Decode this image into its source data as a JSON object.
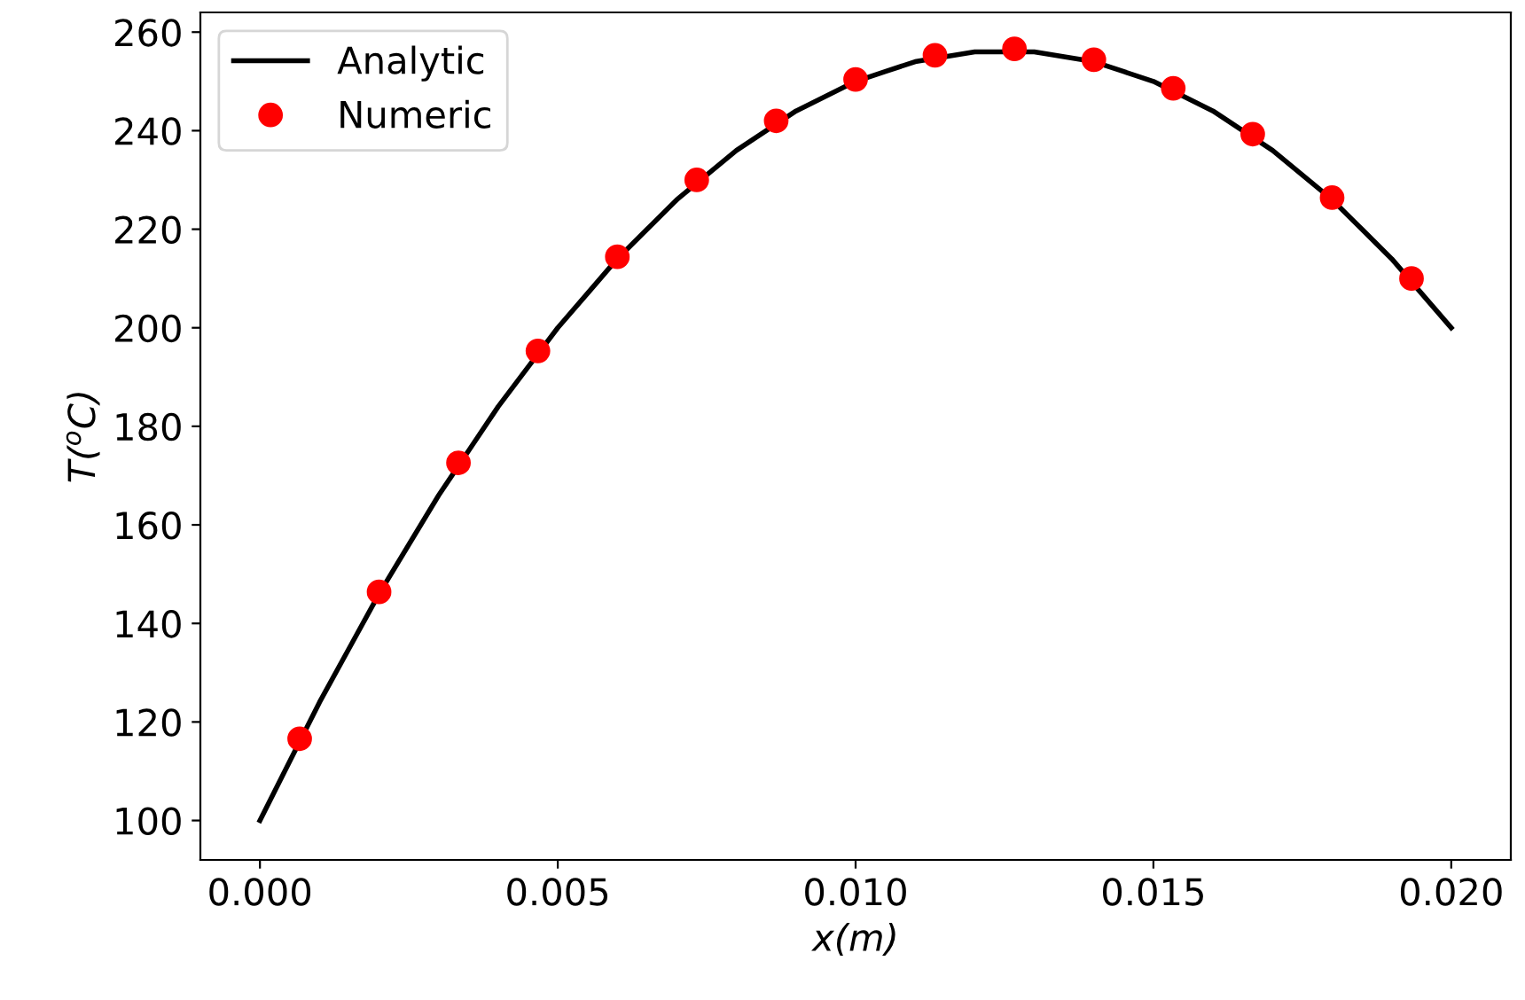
{
  "chart_data": {
    "type": "line",
    "xlabel": "x(m)",
    "ylabel": "T($^{o}$C)",
    "xlim": [
      -0.001,
      0.021
    ],
    "ylim": [
      92,
      264
    ],
    "xticks": [
      {
        "value": 0,
        "label": "0.000"
      },
      {
        "value": 0.005,
        "label": "0.005"
      },
      {
        "value": 0.01,
        "label": "0.010"
      },
      {
        "value": 0.015,
        "label": "0.015"
      },
      {
        "value": 0.02,
        "label": "0.020"
      }
    ],
    "yticks": [
      100,
      120,
      140,
      160,
      180,
      200,
      220,
      240,
      260
    ],
    "legend": "top left",
    "grid": false,
    "series": [
      {
        "name": "Analytic",
        "color": "#000000",
        "marker": "none",
        "line_style": "solid",
        "x": [
          0,
          0.0005,
          0.001,
          0.0015,
          0.002,
          0.0025,
          0.003,
          0.0035,
          0.004,
          0.0045,
          0.005,
          0.0055,
          0.006,
          0.0065,
          0.007,
          0.0075,
          0.008,
          0.0085,
          0.009,
          0.0095,
          0.01,
          0.0105,
          0.011,
          0.0115,
          0.012,
          0.0125,
          0.013,
          0.0135,
          0.014,
          0.0145,
          0.015,
          0.0155,
          0.016,
          0.0165,
          0.017,
          0.0175,
          0.018,
          0.0185,
          0.019,
          0.0195,
          0.02
        ],
        "values": [
          100,
          112,
          124,
          135,
          146,
          156,
          166,
          175,
          184,
          192,
          200,
          207,
          214,
          220,
          226,
          231,
          236,
          240,
          244,
          247,
          250,
          252,
          254,
          255,
          256,
          256,
          256,
          255,
          254,
          252,
          250,
          247,
          244,
          240,
          236,
          231,
          226,
          220,
          214,
          207,
          200
        ]
      },
      {
        "name": "Numeric",
        "type": "scatter",
        "color": "#ff0000",
        "marker": "circle",
        "x": [
          0.000667,
          0.002,
          0.003333,
          0.004667,
          0.006,
          0.007333,
          0.008667,
          0.01,
          0.011333,
          0.012667,
          0.014,
          0.015333,
          0.016667,
          0.018,
          0.019333
        ],
        "values": [
          116.6,
          146.4,
          172.6,
          195.3,
          214.4,
          230,
          242,
          250.4,
          255.3,
          256.6,
          254.4,
          248.6,
          239.3,
          226.4,
          210
        ]
      }
    ]
  }
}
